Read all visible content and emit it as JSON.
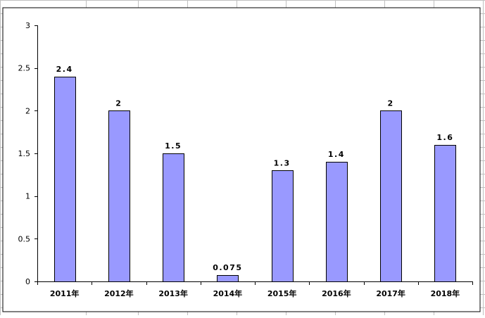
{
  "chart_data": {
    "type": "bar",
    "title": "",
    "xlabel": "",
    "ylabel": "",
    "categories": [
      "2011年",
      "2012年",
      "2013年",
      "2014年",
      "2015年",
      "2016年",
      "2017年",
      "2018年"
    ],
    "values": [
      2.4,
      2,
      1.5,
      0.075,
      1.3,
      1.4,
      2,
      1.6
    ],
    "value_labels": [
      "2.4",
      "2",
      "1.5",
      "0.075",
      "1.3",
      "1.4",
      "2",
      "1.6"
    ],
    "y_ticks": [
      "0",
      "0.5",
      "1",
      "1.5",
      "2",
      "2.5",
      "3"
    ],
    "ylim": [
      0,
      3
    ],
    "grid": false,
    "legend": "none",
    "colors": {
      "bar_fill": "#9999ff",
      "bar_stroke": "#000000",
      "axis": "#000000",
      "sheet_gridline": "#c0c0c0",
      "plot_border": "#000000",
      "background": "#ffffff"
    }
  }
}
